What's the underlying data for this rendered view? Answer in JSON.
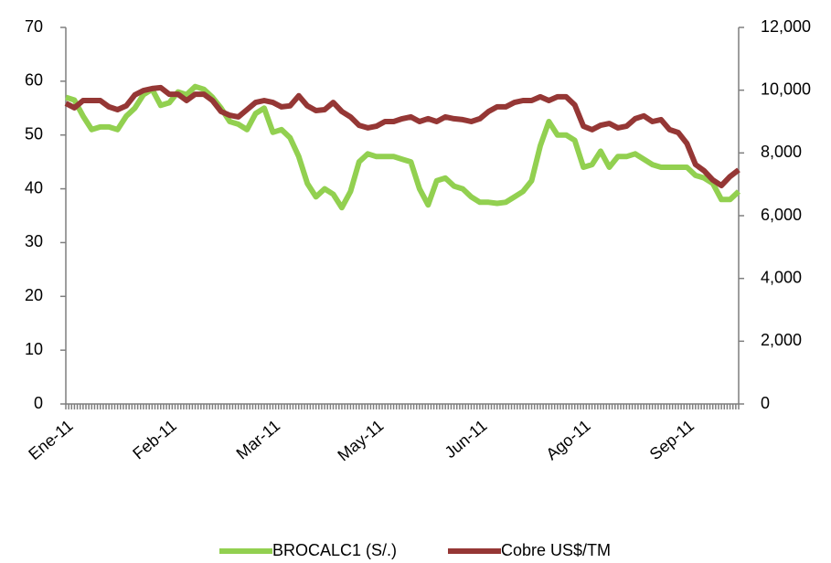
{
  "chart_data": {
    "type": "line",
    "categories": [
      "Ene-11",
      null,
      null,
      null,
      null,
      null,
      null,
      null,
      null,
      null,
      null,
      null,
      "Feb-11",
      null,
      null,
      null,
      null,
      null,
      null,
      null,
      null,
      null,
      null,
      null,
      "Mar-11",
      null,
      null,
      null,
      null,
      null,
      null,
      null,
      null,
      null,
      null,
      null,
      "May-11",
      null,
      null,
      null,
      null,
      null,
      null,
      null,
      null,
      null,
      null,
      null,
      "Jun-11",
      null,
      null,
      null,
      null,
      null,
      null,
      null,
      null,
      null,
      null,
      null,
      "Ago-11",
      null,
      null,
      null,
      null,
      null,
      null,
      null,
      null,
      null,
      null,
      null,
      "Sep-11",
      null,
      null,
      null,
      null,
      null,
      null
    ],
    "series": [
      {
        "name": "BROCALC1 (S/.)",
        "color": "#92d050",
        "values": [
          57,
          56.5,
          53.5,
          51,
          51.5,
          51.5,
          51,
          53.5,
          55,
          57.5,
          58.5,
          55.5,
          56,
          58,
          57.5,
          59,
          58.5,
          57,
          55,
          52.5,
          52,
          51,
          54,
          55,
          50.5,
          51,
          49.5,
          46,
          41,
          38.5,
          40,
          39,
          36.5,
          39.5,
          45,
          46.5,
          46,
          46,
          46,
          45.5,
          45,
          40,
          37,
          41.5,
          42,
          40.5,
          40,
          38.5,
          37.5,
          37.5,
          37.3,
          37.5,
          38.5,
          39.5,
          41.5,
          48,
          52.5,
          50,
          50,
          49,
          44,
          44.5,
          47,
          44,
          46,
          46,
          46.5,
          45.5,
          44.5,
          44,
          44,
          44,
          44,
          42.5,
          42,
          41,
          38,
          38,
          39.5
        ]
      },
      {
        "name": "Cobre US$/TM",
        "color": "#953735",
        "axis": "y2",
        "values": [
          9580,
          9440,
          9670,
          9670,
          9670,
          9470,
          9380,
          9500,
          9850,
          9990,
          10050,
          10080,
          9870,
          9870,
          9670,
          9870,
          9870,
          9670,
          9320,
          9200,
          9150,
          9380,
          9610,
          9670,
          9610,
          9470,
          9500,
          9820,
          9500,
          9350,
          9380,
          9610,
          9320,
          9150,
          8880,
          8800,
          8850,
          9000,
          9000,
          9090,
          9150,
          9000,
          9090,
          9000,
          9150,
          9090,
          9060,
          9000,
          9090,
          9320,
          9470,
          9470,
          9610,
          9670,
          9670,
          9790,
          9670,
          9790,
          9790,
          9530,
          8850,
          8740,
          8880,
          8940,
          8800,
          8850,
          9090,
          9180,
          9000,
          9060,
          8740,
          8650,
          8300,
          7630,
          7430,
          7140,
          6960,
          7250,
          7460
        ]
      }
    ],
    "ylim": [
      0,
      70
    ],
    "yticks": [
      0,
      10,
      20,
      30,
      40,
      50,
      60,
      70
    ],
    "y2lim": [
      0,
      12000
    ],
    "y2ticks": [
      0,
      {
        "value": 2000,
        "label": "2,000"
      },
      {
        "value": 4000,
        "label": "4,000"
      },
      {
        "value": 6000,
        "label": "6,000"
      },
      {
        "value": 8000,
        "label": "8,000"
      },
      {
        "value": 10000,
        "label": "10,000"
      },
      {
        "value": 12000,
        "label": "12,000"
      }
    ],
    "legend": "bottom"
  }
}
